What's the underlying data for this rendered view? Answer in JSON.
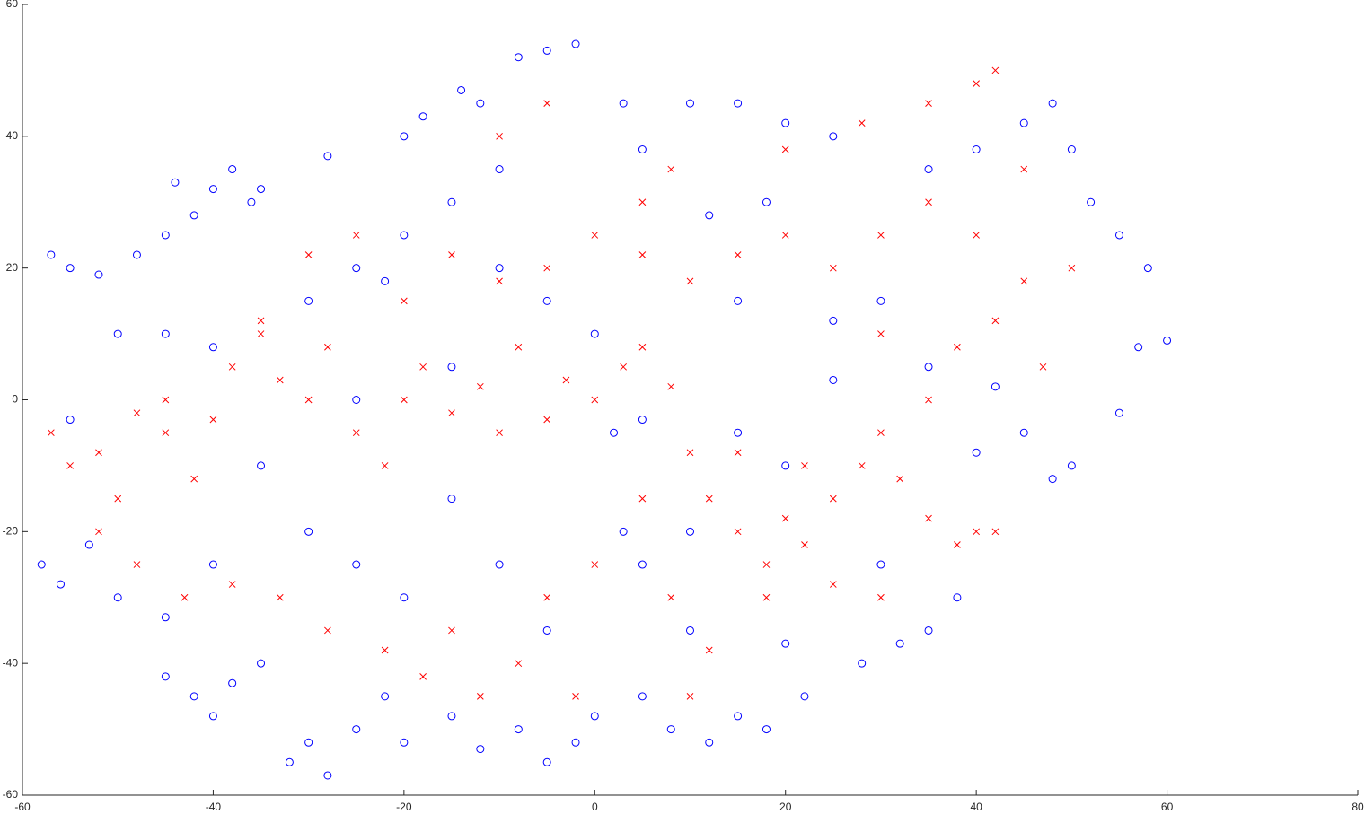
{
  "chart_data": {
    "type": "scatter",
    "xlim": [
      -60,
      80
    ],
    "ylim": [
      -60,
      60
    ],
    "xticks": [
      -60,
      -40,
      -20,
      0,
      20,
      40,
      60,
      80
    ],
    "yticks": [
      -60,
      -40,
      -20,
      0,
      20,
      40,
      60
    ],
    "series": [
      {
        "color": "#0000ff",
        "marker": "circle",
        "x": [
          -40,
          -42,
          -38,
          -36,
          -45,
          -44,
          -48,
          -55,
          -57,
          -52,
          -50,
          -45,
          -40,
          -55,
          -58,
          -56,
          -53,
          -50,
          -45,
          -42,
          -40,
          -38,
          -45,
          -35,
          -32,
          -30,
          -28,
          -25,
          -22,
          -20,
          -15,
          -12,
          -8,
          -5,
          -2,
          0,
          5,
          8,
          12,
          15,
          18,
          22,
          28,
          32,
          35,
          -30,
          -25,
          -20,
          -22,
          -28,
          -35,
          -20,
          -18,
          -15,
          -10,
          -8,
          -5,
          -2,
          -12,
          -14,
          3,
          5,
          10,
          15,
          20,
          25,
          12,
          18,
          15,
          25,
          35,
          40,
          45,
          48,
          50,
          52,
          55,
          58,
          57,
          60,
          55,
          50,
          48,
          45,
          42,
          40,
          35,
          30,
          25,
          20,
          15,
          5,
          2,
          0,
          -5,
          -10,
          -15,
          -25,
          -30,
          -25,
          -20,
          -15,
          -10,
          5,
          10,
          3,
          38,
          30,
          20,
          10,
          -5,
          -35,
          -40
        ],
        "values": [
          32,
          28,
          35,
          30,
          25,
          33,
          22,
          20,
          22,
          19,
          10,
          10,
          8,
          -3,
          -25,
          -28,
          -22,
          -30,
          -33,
          -45,
          -48,
          -43,
          -42,
          -40,
          -55,
          -52,
          -57,
          -50,
          -45,
          -52,
          -48,
          -53,
          -50,
          -55,
          -52,
          -48,
          -45,
          -50,
          -52,
          -48,
          -50,
          -45,
          -40,
          -37,
          -35,
          15,
          20,
          25,
          18,
          37,
          32,
          40,
          43,
          30,
          35,
          52,
          53,
          54,
          45,
          47,
          45,
          38,
          45,
          45,
          42,
          40,
          28,
          30,
          15,
          12,
          35,
          38,
          42,
          45,
          38,
          30,
          25,
          20,
          8,
          9,
          -2,
          -10,
          -12,
          -5,
          2,
          -8,
          5,
          15,
          3,
          -10,
          -5,
          -3,
          -5,
          10,
          15,
          20,
          5,
          0,
          -20,
          -25,
          -30,
          -15,
          -25,
          -25,
          -20,
          -20,
          -30,
          -25,
          -37,
          -35,
          -35,
          -10,
          -25
        ]
      },
      {
        "color": "#ff0000",
        "marker": "x",
        "x": [
          -57,
          -55,
          -52,
          -50,
          -48,
          -45,
          -42,
          -40,
          -38,
          -35,
          -33,
          -30,
          -28,
          -25,
          -22,
          -20,
          -18,
          -15,
          -12,
          -10,
          -8,
          -5,
          -3,
          0,
          3,
          5,
          8,
          10,
          12,
          15,
          18,
          20,
          22,
          25,
          28,
          30,
          32,
          35,
          38,
          40,
          42,
          35,
          38,
          42,
          45,
          40,
          35,
          30,
          25,
          20,
          15,
          10,
          5,
          0,
          -5,
          -10,
          -15,
          -20,
          -25,
          -30,
          -35,
          -45,
          -52,
          -48,
          -43,
          -38,
          -33,
          -28,
          -22,
          -18,
          -12,
          -8,
          -5,
          0,
          5,
          8,
          12,
          18,
          25,
          30,
          22,
          15,
          -10,
          -5,
          5,
          8,
          20,
          28,
          35,
          40,
          42,
          45,
          50,
          47,
          30,
          -2,
          -15,
          10
        ],
        "values": [
          -5,
          -10,
          -8,
          -15,
          -2,
          -5,
          -12,
          -3,
          5,
          10,
          3,
          0,
          8,
          -5,
          -10,
          0,
          5,
          -2,
          2,
          -5,
          8,
          -3,
          3,
          0,
          5,
          8,
          2,
          -8,
          -15,
          -20,
          -25,
          -18,
          -22,
          -15,
          -10,
          -5,
          -12,
          -18,
          -22,
          -20,
          -20,
          0,
          8,
          12,
          18,
          25,
          30,
          25,
          20,
          25,
          22,
          18,
          22,
          25,
          20,
          18,
          22,
          15,
          25,
          22,
          12,
          0,
          -20,
          -25,
          -30,
          -28,
          -30,
          -35,
          -38,
          -42,
          -45,
          -40,
          -30,
          -25,
          -15,
          -30,
          -38,
          -30,
          -28,
          -30,
          -10,
          -8,
          40,
          45,
          30,
          35,
          38,
          42,
          45,
          48,
          50,
          35,
          20,
          5,
          10,
          -45,
          -35,
          -45
        ]
      }
    ]
  }
}
